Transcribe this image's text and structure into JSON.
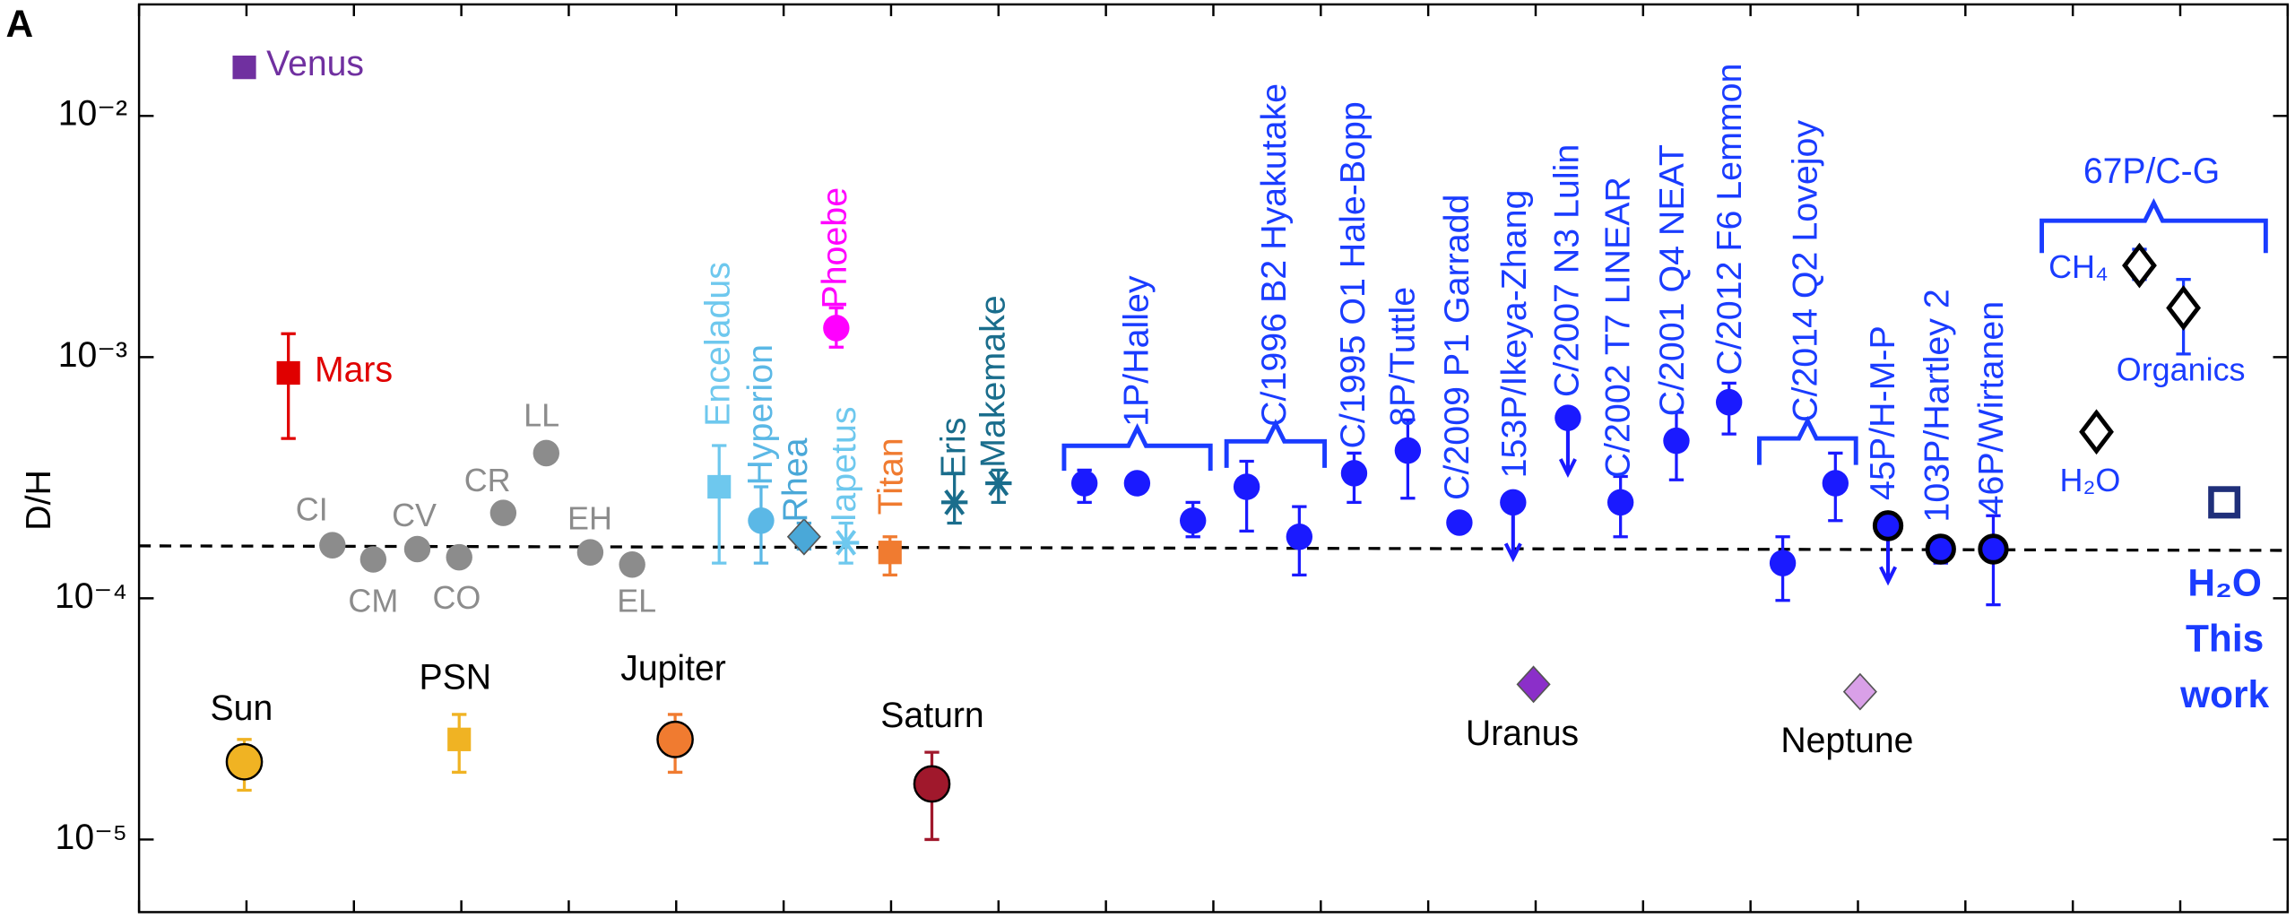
{
  "chart_data": {
    "type": "scatter",
    "panel_label": "A",
    "ylabel": "D/H",
    "log_y": true,
    "ylim": [
      5e-06,
      0.029
    ],
    "yticks": [
      {
        "value": 0.01,
        "label": "10⁻²"
      },
      {
        "value": 0.001,
        "label": "10⁻³"
      },
      {
        "value": 0.0001,
        "label": "10⁻⁴"
      },
      {
        "value": 1e-05,
        "label": "10⁻⁵"
      }
    ],
    "xlim": [
      0,
      20
    ],
    "xticks": [
      0,
      1,
      2,
      3,
      4,
      5,
      6,
      7,
      8,
      9,
      10,
      11,
      12,
      13,
      14,
      15,
      16,
      17,
      18,
      19,
      20
    ],
    "reference_line": [
      0.000165,
      0.000158
    ],
    "points": [
      {
        "label": "Venus",
        "x": 0.98,
        "value": 0.0159,
        "color": "#7030a0",
        "label_color": "#7030a0",
        "marker": "square"
      },
      {
        "label": "Mars",
        "x": 1.39,
        "value": 0.00086,
        "low": 0.00046,
        "high": 0.00125,
        "color": "#e00000",
        "label_color": "#e00000",
        "marker": "square"
      },
      {
        "label": "CI",
        "x": 1.8,
        "value": 0.000166,
        "color": "#8c8c8c",
        "label_color": "#8c8c8c",
        "marker": "circle"
      },
      {
        "label": "CM",
        "x": 2.18,
        "value": 0.000145,
        "low": 0.000135,
        "high": 0.000155,
        "color": "#8c8c8c",
        "label_color": "#8c8c8c",
        "marker": "circle"
      },
      {
        "label": "CV",
        "x": 2.59,
        "value": 0.00016,
        "color": "#8c8c8c",
        "label_color": "#8c8c8c",
        "marker": "circle"
      },
      {
        "label": "CO",
        "x": 2.98,
        "value": 0.000148,
        "color": "#8c8c8c",
        "label_color": "#8c8c8c",
        "marker": "circle"
      },
      {
        "label": "CR",
        "x": 3.39,
        "value": 0.000226,
        "color": "#8c8c8c",
        "label_color": "#8c8c8c",
        "marker": "circle"
      },
      {
        "label": "LL",
        "x": 3.79,
        "value": 0.0004,
        "color": "#8c8c8c",
        "label_color": "#8c8c8c",
        "marker": "circle"
      },
      {
        "label": "EH",
        "x": 4.2,
        "value": 0.000155,
        "color": "#8c8c8c",
        "label_color": "#8c8c8c",
        "marker": "circle"
      },
      {
        "label": "EL",
        "x": 4.59,
        "value": 0.000138,
        "color": "#8c8c8c",
        "label_color": "#8c8c8c",
        "marker": "circle"
      },
      {
        "label": "Sun",
        "x": 0.98,
        "value": 2.1e-05,
        "low": 1.6e-05,
        "high": 2.6e-05,
        "color": "#f0b323",
        "label_color": "#000000",
        "marker": "circle"
      },
      {
        "label": "PSN",
        "x": 2.98,
        "value": 2.6e-05,
        "low": 1.9e-05,
        "high": 3.3e-05,
        "color": "#f0b323",
        "label_color": "#000000",
        "marker": "square"
      },
      {
        "label": "Jupiter",
        "x": 4.99,
        "value": 2.6e-05,
        "low": 1.9e-05,
        "high": 3.3e-05,
        "color": "#f07b30",
        "label_color": "#000000",
        "marker": "circle"
      },
      {
        "label": "Saturn",
        "x": 7.38,
        "value": 1.7e-05,
        "low": 1e-05,
        "high": 2.3e-05,
        "color": "#a0182c",
        "label_color": "#000000",
        "marker": "circle"
      },
      {
        "label": "Enceladus",
        "x": 5.4,
        "value": 0.00029,
        "low": 0.00014,
        "high": 0.00043,
        "color": "#6ec8ee",
        "label_color": "#6ec8ee",
        "marker": "square"
      },
      {
        "label": "Hyperion",
        "x": 5.79,
        "value": 0.00021,
        "low": 0.00014,
        "high": 0.00029,
        "color": "#5bb8e6",
        "label_color": "#5bb8e6",
        "marker": "circle"
      },
      {
        "label": "Rhea",
        "x": 6.19,
        "value": 0.00018,
        "low": 0.00016,
        "high": 0.000205,
        "color": "#4aa8d8",
        "label_color": "#4aa8d8",
        "marker": "diamond"
      },
      {
        "label": "Iapetus",
        "x": 6.58,
        "value": 0.00017,
        "low": 0.00014,
        "high": 0.000205,
        "color": "#6ec8ee",
        "label_color": "#6ec8ee",
        "marker": "asterisk"
      },
      {
        "label": "Phoebe",
        "x": 6.49,
        "value": 0.00132,
        "low": 0.0011,
        "high": 0.0016,
        "color": "#ff00ff",
        "label_color": "#ff00ff",
        "marker": "circle"
      },
      {
        "label": "Titan",
        "x": 6.99,
        "value": 0.000155,
        "low": 0.000125,
        "high": 0.00018,
        "color": "#f07b30",
        "label_color": "#f07b30",
        "marker": "square"
      },
      {
        "label": "Eris",
        "x": 7.59,
        "value": 0.00025,
        "low": 0.000205,
        "high": 0.00033,
        "color": "#1a6d8c",
        "label_color": "#1a6d8c",
        "marker": "asterisk"
      },
      {
        "label": "Makemake",
        "x": 8.0,
        "value": 0.0003,
        "low": 0.00025,
        "high": 0.00034,
        "color": "#1a6d8c",
        "label_color": "#1a6d8c",
        "marker": "asterisk"
      },
      {
        "x": 8.8,
        "value": 0.0003,
        "low": 0.00025,
        "high": 0.00034,
        "color": "#1a1aff",
        "marker": "circle"
      },
      {
        "x": 9.29,
        "value": 0.0003,
        "color": "#1a1aff",
        "marker": "circle"
      },
      {
        "x": 9.81,
        "value": 0.00021,
        "low": 0.00018,
        "high": 0.00025,
        "color": "#1a1aff",
        "marker": "circle"
      },
      {
        "x": 10.31,
        "value": 0.00029,
        "low": 0.00019,
        "high": 0.00037,
        "color": "#1a1aff",
        "marker": "circle"
      },
      {
        "x": 10.8,
        "value": 0.00018,
        "low": 0.000125,
        "high": 0.00024,
        "color": "#1a1aff",
        "marker": "circle"
      },
      {
        "label": "C/1995 O1 Hale-Bopp",
        "x": 11.31,
        "value": 0.00033,
        "low": 0.00025,
        "high": 0.0004,
        "color": "#1a1aff",
        "label_color": "#1a3cff",
        "marker": "circle"
      },
      {
        "label": "8P/Tuttle",
        "x": 11.81,
        "value": 0.00041,
        "low": 0.00026,
        "high": 0.00055,
        "color": "#1a1aff",
        "label_color": "#1a3cff",
        "marker": "circle"
      },
      {
        "label": "C/2009 P1 Garradd",
        "x": 12.29,
        "value": 0.000206,
        "color": "#1a1aff",
        "label_color": "#1a3cff",
        "marker": "circle"
      },
      {
        "label": "153P/Ikeya-Zhang",
        "x": 12.79,
        "value": 0.00025,
        "upper_limit": true,
        "color": "#1a1aff",
        "label_color": "#1a3cff",
        "marker": "circle"
      },
      {
        "label": "C/2007 N3 Lulin",
        "x": 13.3,
        "value": 0.00056,
        "upper_limit": true,
        "color": "#1a1aff",
        "label_color": "#1a3cff",
        "marker": "circle"
      },
      {
        "label": "C/2002 T7 LINEAR",
        "x": 13.79,
        "value": 0.00025,
        "low": 0.00018,
        "high": 0.00032,
        "color": "#1a1aff",
        "label_color": "#1a3cff",
        "marker": "circle"
      },
      {
        "label": "C/2001 Q4 NEAT",
        "x": 14.31,
        "value": 0.00045,
        "low": 0.00031,
        "high": 0.00059,
        "color": "#1a1aff",
        "label_color": "#1a3cff",
        "marker": "circle"
      },
      {
        "label": "C/2012 F6 Lemmon",
        "x": 14.8,
        "value": 0.00065,
        "low": 0.00048,
        "high": 0.00078,
        "color": "#1a1aff",
        "label_color": "#1a3cff",
        "marker": "circle"
      },
      {
        "x": 15.3,
        "value": 0.00014,
        "low": 9.8e-05,
        "high": 0.00018,
        "color": "#1a1aff",
        "marker": "circle"
      },
      {
        "x": 15.79,
        "value": 0.0003,
        "low": 0.00021,
        "high": 0.0004,
        "color": "#1a1aff",
        "marker": "circle"
      },
      {
        "label": "45P/H-M-P",
        "x": 16.28,
        "value": 0.0002,
        "upper_limit": true,
        "color": "#1a1aff",
        "label_color": "#1a3cff",
        "marker": "circle-outline"
      },
      {
        "label": "103P/Hartley 2",
        "x": 16.77,
        "value": 0.00016,
        "low": 0.00014,
        "high": 0.00018,
        "color": "#1a1aff",
        "label_color": "#1a3cff",
        "marker": "circle-outline"
      },
      {
        "label": "46P/Wirtanen",
        "x": 17.26,
        "value": 0.00016,
        "low": 9.4e-05,
        "high": 0.00022,
        "color": "#1a1aff",
        "label_color": "#1a3cff",
        "marker": "circle-outline"
      },
      {
        "label": "Uranus",
        "x": 12.98,
        "value": 4.4e-05,
        "color": "#8b2fc9",
        "label_color": "#000000",
        "marker": "diamond"
      },
      {
        "label": "Neptune",
        "x": 16.02,
        "value": 4.1e-05,
        "color": "#d9a0e8",
        "label_color": "#000000",
        "marker": "diamond"
      },
      {
        "label": "H₂O",
        "x": 18.22,
        "value": 0.00049,
        "color": "#ffffff",
        "label_color": "#1a3cff",
        "marker": "diamond-outline"
      },
      {
        "label": "CH₄",
        "x": 18.62,
        "value": 0.0024,
        "low": 0.0021,
        "high": 0.0028,
        "color": "#ffffff",
        "label_color": "#1a3cff",
        "marker": "diamond-outline"
      },
      {
        "label": "Organics",
        "x": 19.03,
        "value": 0.0016,
        "low": 0.00103,
        "high": 0.0021,
        "color": "#ffffff",
        "label_color": "#1a3cff",
        "marker": "diamond-outline"
      },
      {
        "x": 19.41,
        "value": 0.00025,
        "color": "#1f2f7a",
        "marker": "square-outline"
      }
    ],
    "groups": [
      {
        "label": "1P/Halley"
      },
      {
        "label": "C/1996 B2 Hyakutake"
      },
      {
        "label": "C/2014 Q2 Lovejoy"
      },
      {
        "label": "67P/C-G"
      }
    ],
    "annotation": [
      "H₂O",
      "This",
      "work"
    ],
    "annotation_color": "#1a3cff"
  }
}
